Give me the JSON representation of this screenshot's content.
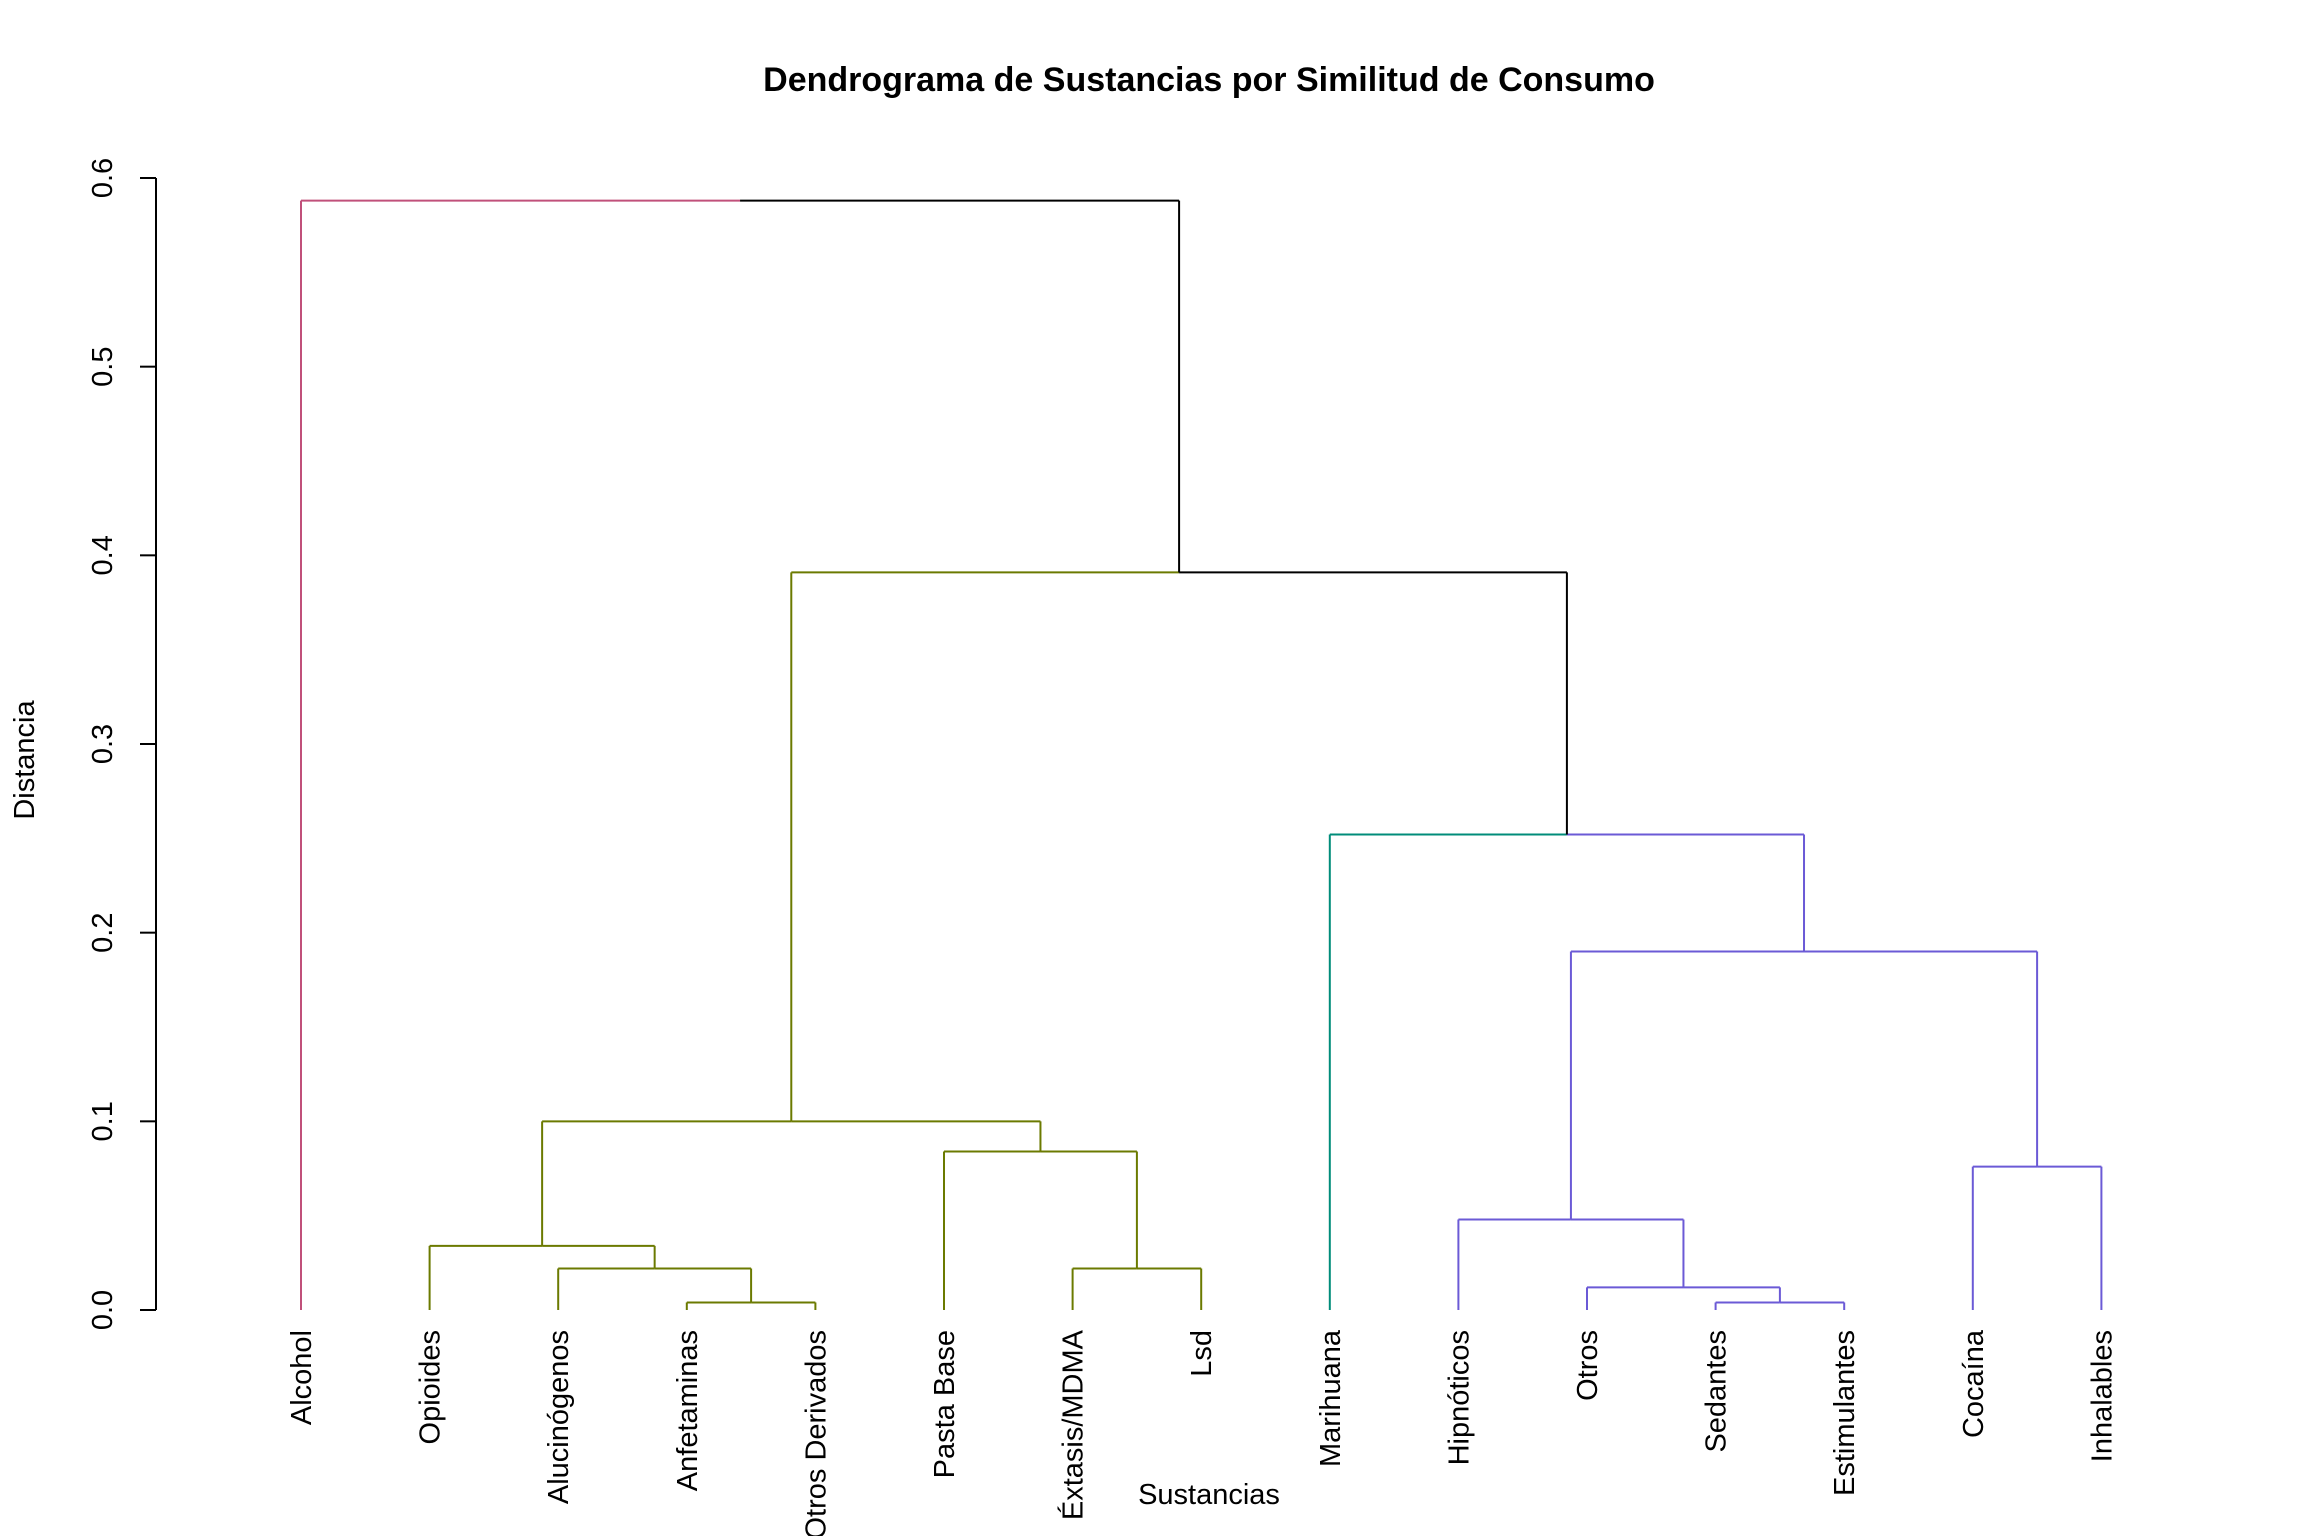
{
  "chart_data": {
    "type": "dendrogram",
    "title": "Dendrograma de Sustancias por Similitud de Consumo",
    "xlabel": "Sustancias",
    "ylabel": "Distancia",
    "ylim": [
      0,
      0.6
    ],
    "yticks": [
      "0.0",
      "0.1",
      "0.2",
      "0.3",
      "0.4",
      "0.5",
      "0.6"
    ],
    "ytick_values": [
      0,
      0.1,
      0.2,
      0.3,
      0.4,
      0.5,
      0.6
    ],
    "grid": false,
    "leaves": [
      "Alcohol",
      "Opioides",
      "Alucinógenos",
      "Anfetaminas",
      "Otros Derivados",
      "Pasta Base",
      "Éxtasis/MDMA",
      "Lsd",
      "Marihuana",
      "Hipnóticos",
      "Otros",
      "Sedantes",
      "Estimulantes",
      "Cocaína",
      "Inhalables"
    ],
    "cluster_colors": {
      "alcohol": "#c0507a",
      "estimulantes_alucinogenos": "#6b7a00",
      "marihuana": "#008c7a",
      "depresores": "#6b5ad6",
      "root": "#000000"
    },
    "merges": [
      {
        "left": "Anfetaminas",
        "right": "Otros Derivados",
        "height": 0.004,
        "color": "estimulantes_alucinogenos"
      },
      {
        "left": "Alucinógenos",
        "right": "m1",
        "height": 0.022,
        "color": "estimulantes_alucinogenos"
      },
      {
        "left": "Opioides",
        "right": "m2",
        "height": 0.034,
        "color": "estimulantes_alucinogenos"
      },
      {
        "left": "Éxtasis/MDMA",
        "right": "Lsd",
        "height": 0.022,
        "color": "estimulantes_alucinogenos"
      },
      {
        "left": "Pasta Base",
        "right": "m4",
        "height": 0.084,
        "color": "estimulantes_alucinogenos"
      },
      {
        "left": "m3",
        "right": "m5",
        "height": 0.1,
        "color": "estimulantes_alucinogenos"
      },
      {
        "left": "Sedantes",
        "right": "Estimulantes",
        "height": 0.004,
        "color": "depresores"
      },
      {
        "left": "Otros",
        "right": "m7",
        "height": 0.012,
        "color": "depresores"
      },
      {
        "left": "Hipnóticos",
        "right": "m8",
        "height": 0.048,
        "color": "depresores"
      },
      {
        "left": "Cocaína",
        "right": "Inhalables",
        "height": 0.076,
        "color": "depresores"
      },
      {
        "left": "m9",
        "right": "m10",
        "height": 0.19,
        "color": "depresores"
      },
      {
        "left": "Marihuana",
        "right": "m11",
        "height": 0.252,
        "color": "marihuana",
        "right_color": "depresores"
      },
      {
        "left": "m6",
        "right": "m12",
        "height": 0.391,
        "color": "estimulantes_alucinogenos",
        "right_color": "root"
      },
      {
        "left": "Alcohol",
        "right": "m13",
        "height": 0.588,
        "color": "alcohol",
        "right_color": "root"
      }
    ]
  }
}
